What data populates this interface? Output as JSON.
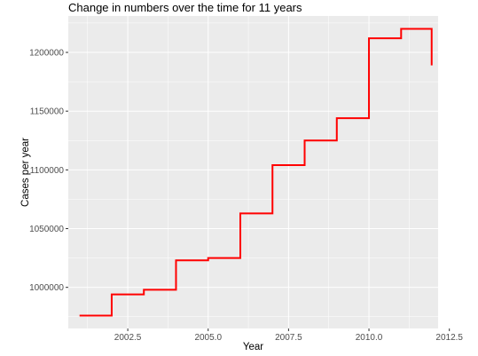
{
  "chart_data": {
    "type": "line",
    "style": "step",
    "title": "Change in numbers over the time for 11 years",
    "xlabel": "Year",
    "ylabel": "Cases per year",
    "xlim": [
      2000.65,
      2012.15
    ],
    "ylim": [
      965000,
      1231000
    ],
    "xticks": [
      2002.5,
      2005.0,
      2007.5,
      2010.0,
      2012.5
    ],
    "xtick_labels": [
      "2002.5",
      "2005.0",
      "2007.5",
      "2010.0",
      "2012.5"
    ],
    "yticks": [
      1000000,
      1050000,
      1100000,
      1150000,
      1200000
    ],
    "ytick_labels": [
      "1000000",
      "1050000",
      "1100000",
      "1150000",
      "1200000"
    ],
    "grid": true,
    "colors": {
      "line": "#ff0000",
      "panel": "#ebebeb",
      "grid": "#ffffff"
    },
    "series": [
      {
        "x": [
          2001,
          2002,
          2003,
          2004,
          2005,
          2006,
          2007,
          2008,
          2009,
          2010,
          2011,
          2011.95
        ],
        "y": [
          976000,
          994000,
          998000,
          1023000,
          1025000,
          1063000,
          1104000,
          1125000,
          1144000,
          1212000,
          1220000,
          1189000
        ]
      }
    ]
  }
}
